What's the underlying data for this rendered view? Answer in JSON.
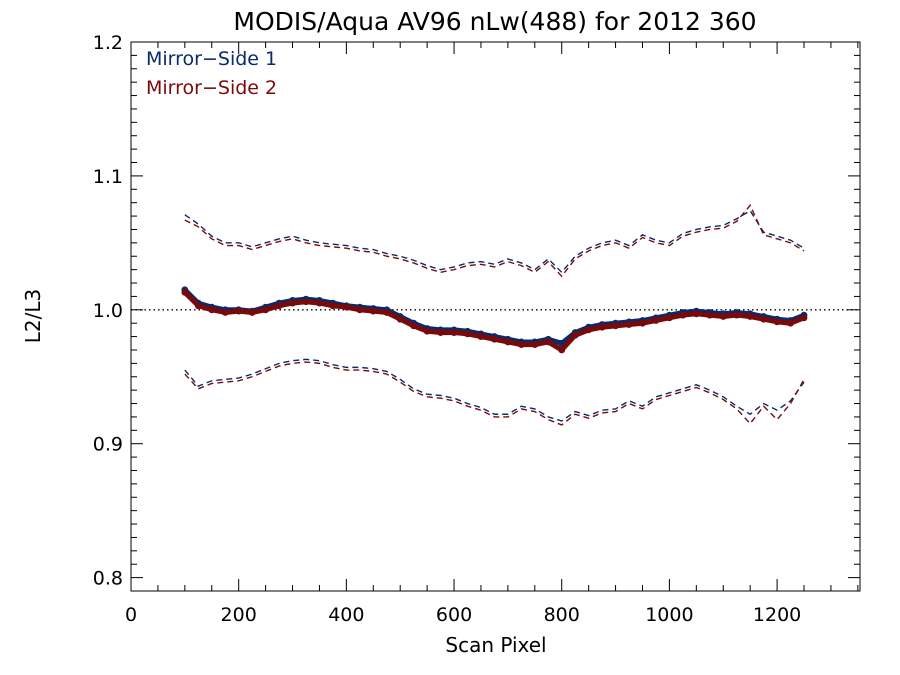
{
  "chart_data": {
    "type": "line",
    "title": "MODIS/Aqua AV96 nLw(488) for 2012 360",
    "xlabel": "Scan Pixel",
    "ylabel": "L2/L3",
    "xlim": [
      0,
      1354
    ],
    "ylim": [
      0.79,
      1.2
    ],
    "xticks": [
      0,
      200,
      400,
      600,
      800,
      1000,
      1200
    ],
    "xtick_labels": [
      "0",
      "200",
      "400",
      "600",
      "800",
      "1000",
      "1200"
    ],
    "yticks": [
      0.8,
      0.9,
      1.0,
      1.1,
      1.2
    ],
    "ytick_labels": [
      "0.8",
      "0.9",
      "1.0",
      "1.1",
      "1.2"
    ],
    "reference_line": 1.0,
    "legend_position": "top-left",
    "colors": {
      "ms1": "#0a2a6b",
      "ms2": "#7a0a0a"
    },
    "legend": [
      "Mirror−Side 1",
      "Mirror−Side 2"
    ],
    "x": [
      100,
      125,
      150,
      175,
      200,
      225,
      250,
      275,
      300,
      325,
      350,
      375,
      400,
      425,
      450,
      475,
      500,
      525,
      550,
      575,
      600,
      625,
      650,
      675,
      700,
      725,
      750,
      775,
      800,
      825,
      850,
      875,
      900,
      925,
      950,
      975,
      1000,
      1025,
      1050,
      1075,
      1100,
      1125,
      1150,
      1175,
      1200,
      1225,
      1250
    ],
    "series": [
      {
        "name": "Mirror−Side 1",
        "role": "mean",
        "values": [
          1.015,
          1.005,
          1.002,
          1.0,
          1.0,
          0.999,
          1.002,
          1.005,
          1.007,
          1.008,
          1.007,
          1.005,
          1.003,
          1.002,
          1.001,
          1.0,
          0.995,
          0.99,
          0.986,
          0.985,
          0.985,
          0.984,
          0.982,
          0.98,
          0.978,
          0.976,
          0.976,
          0.978,
          0.975,
          0.983,
          0.987,
          0.989,
          0.99,
          0.991,
          0.992,
          0.994,
          0.996,
          0.998,
          0.999,
          0.998,
          0.997,
          0.998,
          0.997,
          0.995,
          0.993,
          0.992,
          0.996
        ]
      },
      {
        "name": "Mirror−Side 2",
        "role": "mean",
        "values": [
          1.013,
          1.003,
          1.0,
          0.998,
          0.999,
          0.998,
          1.0,
          1.003,
          1.005,
          1.006,
          1.005,
          1.003,
          1.002,
          1.0,
          0.999,
          0.998,
          0.993,
          0.988,
          0.984,
          0.983,
          0.983,
          0.982,
          0.98,
          0.978,
          0.976,
          0.974,
          0.974,
          0.976,
          0.97,
          0.981,
          0.985,
          0.987,
          0.988,
          0.989,
          0.99,
          0.992,
          0.994,
          0.996,
          0.997,
          0.996,
          0.995,
          0.996,
          0.995,
          0.993,
          0.991,
          0.99,
          0.994
        ]
      },
      {
        "name": "Mirror−Side 1",
        "role": "upper",
        "values": [
          1.071,
          1.064,
          1.055,
          1.05,
          1.05,
          1.047,
          1.05,
          1.053,
          1.055,
          1.052,
          1.05,
          1.049,
          1.048,
          1.046,
          1.045,
          1.042,
          1.04,
          1.037,
          1.033,
          1.03,
          1.032,
          1.035,
          1.036,
          1.034,
          1.038,
          1.035,
          1.03,
          1.038,
          1.028,
          1.04,
          1.046,
          1.05,
          1.052,
          1.048,
          1.056,
          1.052,
          1.05,
          1.057,
          1.06,
          1.062,
          1.063,
          1.068,
          1.074,
          1.058,
          1.055,
          1.052,
          1.046
        ]
      },
      {
        "name": "Mirror−Side 2",
        "role": "upper",
        "values": [
          1.067,
          1.062,
          1.053,
          1.048,
          1.048,
          1.045,
          1.048,
          1.051,
          1.053,
          1.05,
          1.048,
          1.047,
          1.046,
          1.044,
          1.043,
          1.04,
          1.038,
          1.035,
          1.031,
          1.028,
          1.03,
          1.033,
          1.034,
          1.032,
          1.036,
          1.033,
          1.028,
          1.036,
          1.025,
          1.038,
          1.044,
          1.048,
          1.05,
          1.046,
          1.054,
          1.05,
          1.048,
          1.055,
          1.058,
          1.06,
          1.061,
          1.066,
          1.078,
          1.056,
          1.053,
          1.05,
          1.044
        ]
      },
      {
        "name": "Mirror−Side 1",
        "role": "lower",
        "values": [
          0.955,
          0.943,
          0.947,
          0.948,
          0.949,
          0.952,
          0.956,
          0.96,
          0.962,
          0.963,
          0.962,
          0.959,
          0.957,
          0.957,
          0.956,
          0.954,
          0.948,
          0.941,
          0.937,
          0.936,
          0.934,
          0.93,
          0.927,
          0.922,
          0.922,
          0.928,
          0.926,
          0.92,
          0.917,
          0.924,
          0.921,
          0.925,
          0.926,
          0.932,
          0.928,
          0.935,
          0.938,
          0.941,
          0.944,
          0.94,
          0.935,
          0.928,
          0.922,
          0.93,
          0.925,
          0.932,
          0.946
        ]
      },
      {
        "name": "Mirror−Side 2",
        "role": "lower",
        "values": [
          0.952,
          0.941,
          0.945,
          0.946,
          0.947,
          0.95,
          0.954,
          0.958,
          0.96,
          0.961,
          0.96,
          0.957,
          0.955,
          0.955,
          0.954,
          0.952,
          0.946,
          0.939,
          0.935,
          0.934,
          0.932,
          0.928,
          0.925,
          0.92,
          0.92,
          0.926,
          0.924,
          0.918,
          0.914,
          0.922,
          0.919,
          0.923,
          0.924,
          0.93,
          0.926,
          0.933,
          0.936,
          0.939,
          0.942,
          0.938,
          0.933,
          0.926,
          0.915,
          0.928,
          0.918,
          0.93,
          0.948
        ]
      }
    ]
  }
}
